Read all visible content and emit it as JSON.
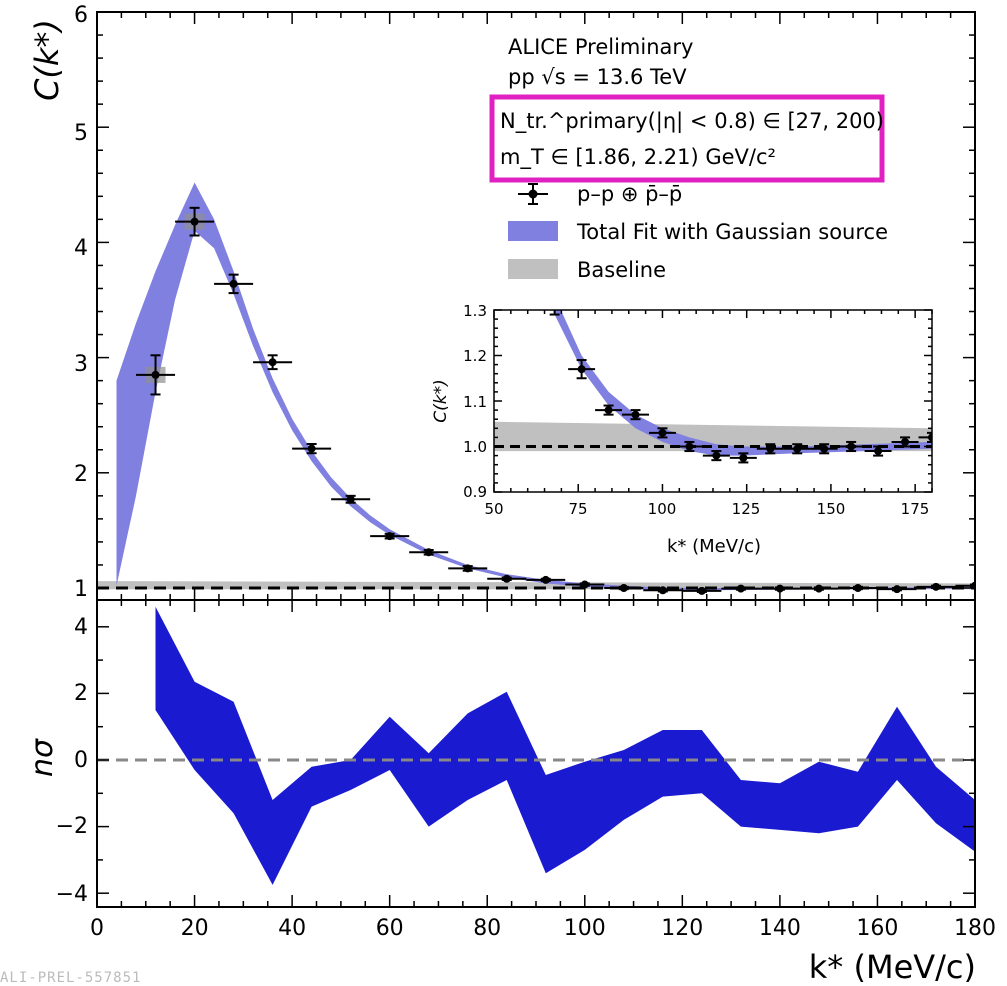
{
  "chart_data": [
    {
      "panel": "top",
      "type": "scatter",
      "xlabel": "k* (MeV/c)",
      "ylabel": "C(k*)",
      "xlim": [
        0,
        180
      ],
      "ylim": [
        0.9,
        6
      ],
      "yticks": [
        "1",
        "2",
        "3",
        "4",
        "5",
        "6"
      ],
      "legend_placement": "top-right",
      "text": {
        "line1": "ALICE Preliminary",
        "line2": "pp √s = 13.6 TeV",
        "line3": "N_tr.^primary(|η| < 0.8) ∈ [27, 200)",
        "line4": "m_T ∈ [1.86, 2.21) GeV/c²"
      },
      "legend": {
        "data_label": "p–p ⊕ p̄–p̄",
        "fit_label": "Total Fit with Gaussian source",
        "baseline_label": "Baseline"
      },
      "colors": {
        "fit": "#8080e0",
        "baseline": "#c0c0c0",
        "highlight_box": "#e020c0"
      },
      "data_points": [
        {
          "x": 12,
          "y": 2.85,
          "yerr": 0.17
        },
        {
          "x": 20,
          "y": 4.18,
          "yerr": 0.12
        },
        {
          "x": 28,
          "y": 3.64,
          "yerr": 0.08
        },
        {
          "x": 36,
          "y": 2.96,
          "yerr": 0.06
        },
        {
          "x": 44,
          "y": 2.21,
          "yerr": 0.04
        },
        {
          "x": 52,
          "y": 1.77,
          "yerr": 0.03
        },
        {
          "x": 60,
          "y": 1.45,
          "yerr": 0.02
        },
        {
          "x": 68,
          "y": 1.31,
          "yerr": 0.02
        },
        {
          "x": 76,
          "y": 1.17,
          "yerr": 0.02
        },
        {
          "x": 84,
          "y": 1.08,
          "yerr": 0.01
        },
        {
          "x": 92,
          "y": 1.07,
          "yerr": 0.01
        },
        {
          "x": 100,
          "y": 1.03,
          "yerr": 0.01
        },
        {
          "x": 108,
          "y": 1.0,
          "yerr": 0.01
        },
        {
          "x": 116,
          "y": 0.98,
          "yerr": 0.01
        },
        {
          "x": 124,
          "y": 0.975,
          "yerr": 0.01
        },
        {
          "x": 132,
          "y": 0.995,
          "yerr": 0.01
        },
        {
          "x": 140,
          "y": 0.995,
          "yerr": 0.01
        },
        {
          "x": 148,
          "y": 0.995,
          "yerr": 0.01
        },
        {
          "x": 156,
          "y": 1.0,
          "yerr": 0.01
        },
        {
          "x": 164,
          "y": 0.99,
          "yerr": 0.01
        },
        {
          "x": 172,
          "y": 1.01,
          "yerr": 0.01
        },
        {
          "x": 180,
          "y": 1.02,
          "yerr": 0.01
        }
      ],
      "fit_band": [
        {
          "x": 4,
          "lo": 1.02,
          "hi": 2.8
        },
        {
          "x": 8,
          "lo": 1.8,
          "hi": 3.3
        },
        {
          "x": 12,
          "lo": 2.7,
          "hi": 3.75
        },
        {
          "x": 16,
          "lo": 3.5,
          "hi": 4.15
        },
        {
          "x": 20,
          "lo": 4.1,
          "hi": 4.52
        },
        {
          "x": 24,
          "lo": 3.95,
          "hi": 4.2
        },
        {
          "x": 28,
          "lo": 3.55,
          "hi": 3.75
        },
        {
          "x": 32,
          "lo": 3.1,
          "hi": 3.25
        },
        {
          "x": 36,
          "lo": 2.7,
          "hi": 2.82
        },
        {
          "x": 40,
          "lo": 2.37,
          "hi": 2.47
        },
        {
          "x": 44,
          "lo": 2.1,
          "hi": 2.19
        },
        {
          "x": 48,
          "lo": 1.88,
          "hi": 1.96
        },
        {
          "x": 52,
          "lo": 1.71,
          "hi": 1.78
        },
        {
          "x": 56,
          "lo": 1.57,
          "hi": 1.63
        },
        {
          "x": 60,
          "lo": 1.46,
          "hi": 1.51
        },
        {
          "x": 68,
          "lo": 1.29,
          "hi": 1.33
        },
        {
          "x": 76,
          "lo": 1.17,
          "hi": 1.2
        },
        {
          "x": 84,
          "lo": 1.09,
          "hi": 1.12
        },
        {
          "x": 92,
          "lo": 1.04,
          "hi": 1.07
        },
        {
          "x": 100,
          "lo": 1.01,
          "hi": 1.04
        },
        {
          "x": 108,
          "lo": 0.99,
          "hi": 1.02
        },
        {
          "x": 116,
          "lo": 0.98,
          "hi": 1.005
        },
        {
          "x": 124,
          "lo": 0.98,
          "hi": 1.0
        },
        {
          "x": 140,
          "lo": 0.985,
          "hi": 1.0
        },
        {
          "x": 160,
          "lo": 0.99,
          "hi": 1.005
        },
        {
          "x": 180,
          "lo": 0.995,
          "hi": 1.01
        }
      ],
      "baseline_band": [
        {
          "x": 0,
          "lo": 0.99,
          "hi": 1.06
        },
        {
          "x": 180,
          "lo": 0.99,
          "hi": 1.04
        }
      ],
      "reference_y": 1.0
    },
    {
      "panel": "inset",
      "type": "scatter",
      "xlabel": "k* (MeV/c)",
      "ylabel": "C(k*)",
      "xlim": [
        50,
        180
      ],
      "ylim": [
        0.9,
        1.3
      ],
      "xticks": [
        "50",
        "75",
        "100",
        "125",
        "150",
        "175"
      ],
      "yticks": [
        "0.9",
        "1.0",
        "1.1",
        "1.2",
        "1.3"
      ]
    },
    {
      "panel": "bottom",
      "type": "area",
      "ylabel": "nσ",
      "xlim": [
        0,
        180
      ],
      "ylim": [
        -4.5,
        4.5
      ],
      "xticks": [
        "0",
        "20",
        "40",
        "60",
        "80",
        "100",
        "120",
        "140",
        "160",
        "180"
      ],
      "yticks": [
        "−4",
        "−2",
        "0",
        "2",
        "4"
      ],
      "band_color": "#1a1ad0",
      "reference_y": 0,
      "band": [
        {
          "x": 12,
          "lo": 1.5,
          "hi": 4.6
        },
        {
          "x": 20,
          "lo": -0.3,
          "hi": 2.35
        },
        {
          "x": 28,
          "lo": -1.6,
          "hi": 1.75
        },
        {
          "x": 36,
          "lo": -3.75,
          "hi": -1.2
        },
        {
          "x": 44,
          "lo": -1.4,
          "hi": -0.2
        },
        {
          "x": 52,
          "lo": -0.9,
          "hi": 0.0
        },
        {
          "x": 60,
          "lo": -0.3,
          "hi": 1.3
        },
        {
          "x": 68,
          "lo": -2.0,
          "hi": 0.2
        },
        {
          "x": 76,
          "lo": -1.2,
          "hi": 1.4
        },
        {
          "x": 84,
          "lo": -0.6,
          "hi": 2.05
        },
        {
          "x": 92,
          "lo": -3.4,
          "hi": -0.45
        },
        {
          "x": 100,
          "lo": -2.7,
          "hi": -0.05
        },
        {
          "x": 108,
          "lo": -1.8,
          "hi": 0.3
        },
        {
          "x": 116,
          "lo": -1.1,
          "hi": 0.9
        },
        {
          "x": 124,
          "lo": -1.0,
          "hi": 0.9
        },
        {
          "x": 132,
          "lo": -2.0,
          "hi": -0.6
        },
        {
          "x": 140,
          "lo": -2.1,
          "hi": -0.7
        },
        {
          "x": 148,
          "lo": -2.2,
          "hi": -0.05
        },
        {
          "x": 156,
          "lo": -2.0,
          "hi": -0.35
        },
        {
          "x": 164,
          "lo": -0.6,
          "hi": 1.6
        },
        {
          "x": 172,
          "lo": -1.9,
          "hi": -0.2
        },
        {
          "x": 180,
          "lo": -2.75,
          "hi": -1.2
        }
      ]
    }
  ],
  "watermark": "ALI-PREL-557851"
}
